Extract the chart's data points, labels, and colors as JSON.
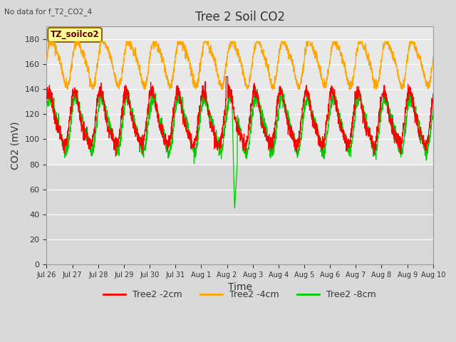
{
  "title": "Tree 2 Soil CO2",
  "no_data_text": "No data for f_T2_CO2_4",
  "ylabel": "CO2 (mV)",
  "xlabel": "Time",
  "ylim": [
    0,
    190
  ],
  "yticks": [
    0,
    20,
    40,
    60,
    80,
    100,
    120,
    140,
    160,
    180
  ],
  "x_tick_labels": [
    "Jul 26",
    "Jul 27",
    "Jul 28",
    "Jul 29",
    "Jul 30",
    "Jul 31",
    "Aug 1",
    "Aug 2",
    "Aug 3",
    "Aug 4",
    "Aug 5",
    "Aug 6",
    "Aug 7",
    "Aug 8",
    "Aug 9",
    "Aug 10"
  ],
  "legend_labels": [
    "Tree2 -2cm",
    "Tree2 -4cm",
    "Tree2 -8cm"
  ],
  "line_colors": [
    "#ff0000",
    "#ffa500",
    "#00cc00"
  ],
  "bg_color": "#d9d9d9",
  "band_colors_light": "#e8e8e8",
  "band_colors_dark": "#d0d0d0",
  "annotation_text": "TZ_soilco2",
  "annotation_bg": "#ffff99",
  "annotation_border": "#996600",
  "title_fontsize": 12,
  "axis_label_fontsize": 10,
  "tick_fontsize": 8,
  "legend_fontsize": 9,
  "n_days": 15,
  "orange_base": 162,
  "orange_amp": 17,
  "orange_min": 140,
  "orange_max": 178,
  "red_base": 115,
  "red_amp": 20,
  "red_min": 85,
  "red_max": 150,
  "green_base": 112,
  "green_amp": 20,
  "green_min": 45,
  "green_max": 140
}
